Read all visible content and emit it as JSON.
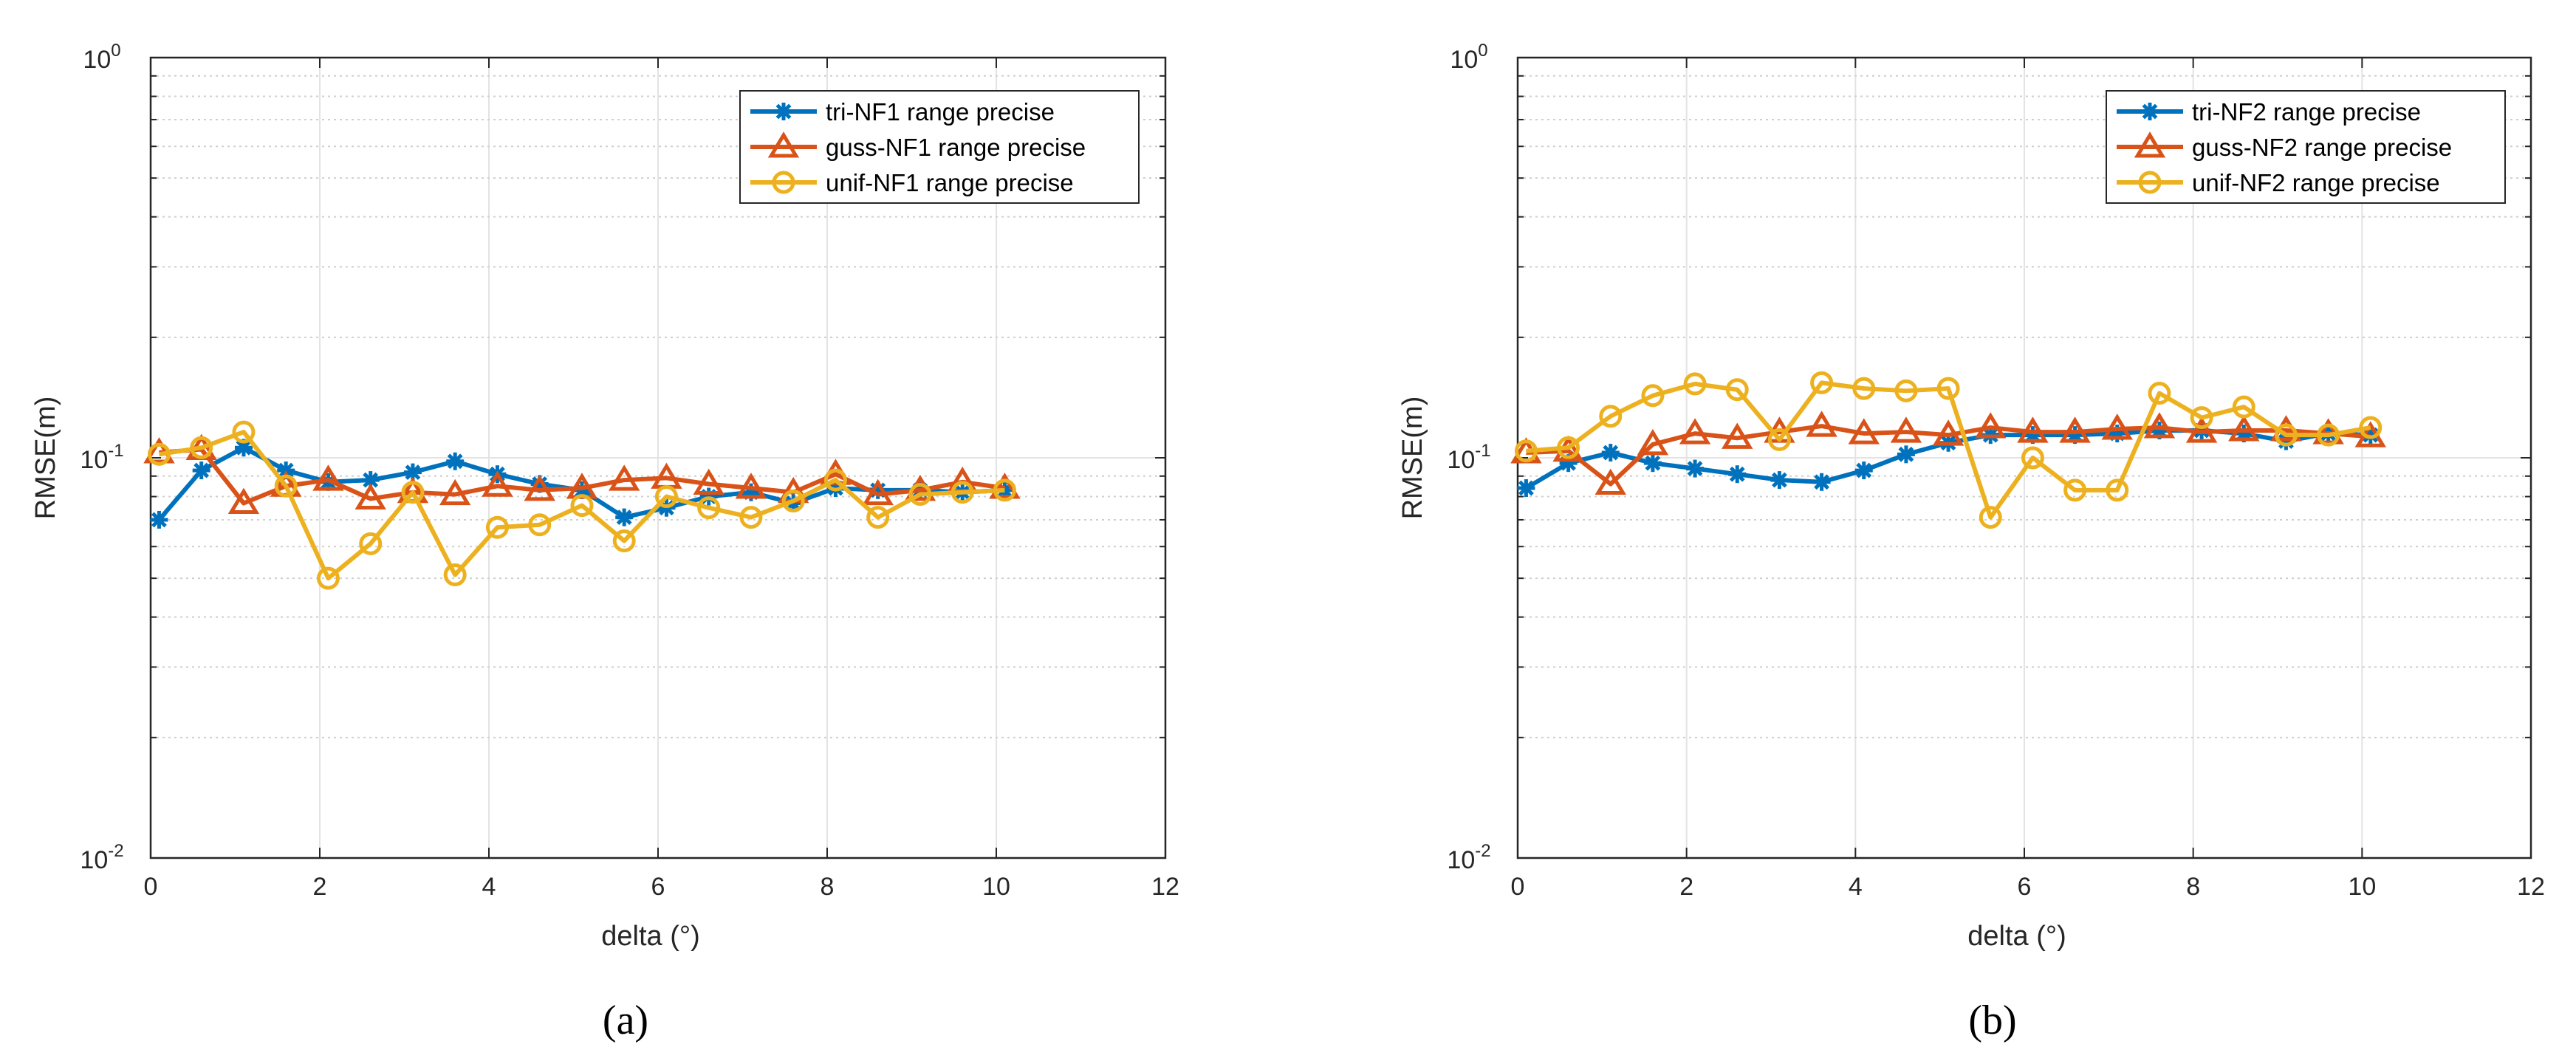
{
  "chart_data": [
    {
      "type": "line",
      "panel": "a",
      "caption": "(a)",
      "title": "",
      "xlabel": "delta (°)",
      "ylabel": "RMSE(m)",
      "xlim": [
        0,
        12
      ],
      "ylim": [
        0.01,
        1
      ],
      "yscale": "log",
      "grid": true,
      "legend_position": "top-right",
      "xticks": [
        0,
        2,
        4,
        6,
        8,
        10,
        12
      ],
      "yticks": [
        {
          "value": 0.01,
          "base": "10",
          "exp": "-2"
        },
        {
          "value": 0.1,
          "base": "10",
          "exp": "-1"
        },
        {
          "value": 1,
          "base": "10",
          "exp": "0"
        }
      ],
      "x": [
        0.1,
        0.6,
        1.1,
        1.6,
        2.1,
        2.6,
        3.1,
        3.6,
        4.1,
        4.6,
        5.1,
        5.6,
        6.1,
        6.6,
        7.1,
        7.6,
        8.1,
        8.6,
        9.1,
        9.6,
        10.1
      ],
      "series": [
        {
          "name": "tri-NF1 range precise",
          "color": "#0072BD",
          "marker": "asterisk",
          "values": [
            0.07,
            0.093,
            0.106,
            0.093,
            0.087,
            0.088,
            0.092,
            0.098,
            0.091,
            0.086,
            0.083,
            0.071,
            0.075,
            0.08,
            0.082,
            0.077,
            0.084,
            0.083,
            0.083,
            0.082,
            0.083
          ]
        },
        {
          "name": "guss-NF1 range precise",
          "color": "#D95319",
          "marker": "triangle",
          "values": [
            0.103,
            0.105,
            0.077,
            0.085,
            0.088,
            0.079,
            0.082,
            0.081,
            0.085,
            0.083,
            0.084,
            0.088,
            0.089,
            0.086,
            0.084,
            0.082,
            0.091,
            0.081,
            0.083,
            0.087,
            0.084
          ]
        },
        {
          "name": "unif-NF1 range precise",
          "color": "#EDB120",
          "marker": "circle",
          "values": [
            0.102,
            0.106,
            0.116,
            0.085,
            0.05,
            0.061,
            0.082,
            0.051,
            0.067,
            0.068,
            0.076,
            0.062,
            0.08,
            0.075,
            0.071,
            0.078,
            0.088,
            0.071,
            0.081,
            0.082,
            0.083
          ]
        }
      ]
    },
    {
      "type": "line",
      "panel": "b",
      "caption": "(b)",
      "title": "",
      "xlabel": "delta (°)",
      "ylabel": "RMSE(m)",
      "xlim": [
        0,
        12
      ],
      "ylim": [
        0.01,
        1
      ],
      "yscale": "log",
      "grid": true,
      "legend_position": "top-right",
      "xticks": [
        0,
        2,
        4,
        6,
        8,
        10,
        12
      ],
      "yticks": [
        {
          "value": 0.01,
          "base": "10",
          "exp": "-2"
        },
        {
          "value": 0.1,
          "base": "10",
          "exp": "-1"
        },
        {
          "value": 1,
          "base": "10",
          "exp": "0"
        }
      ],
      "x": [
        0.1,
        0.6,
        1.1,
        1.6,
        2.1,
        2.6,
        3.1,
        3.6,
        4.1,
        4.6,
        5.1,
        5.6,
        6.1,
        6.6,
        7.1,
        7.6,
        8.1,
        8.6,
        9.1,
        9.6,
        10.1
      ],
      "series": [
        {
          "name": "tri-NF2 range precise",
          "color": "#0072BD",
          "marker": "asterisk",
          "values": [
            0.084,
            0.097,
            0.103,
            0.097,
            0.094,
            0.091,
            0.088,
            0.087,
            0.093,
            0.102,
            0.109,
            0.114,
            0.114,
            0.114,
            0.115,
            0.117,
            0.117,
            0.115,
            0.11,
            0.115,
            0.114
          ]
        },
        {
          "name": "guss-NF2 range precise",
          "color": "#D95319",
          "marker": "triangle",
          "values": [
            0.103,
            0.104,
            0.086,
            0.108,
            0.115,
            0.112,
            0.116,
            0.12,
            0.115,
            0.116,
            0.114,
            0.119,
            0.116,
            0.116,
            0.118,
            0.119,
            0.116,
            0.117,
            0.117,
            0.115,
            0.113
          ]
        },
        {
          "name": "unif-NF2 range precise",
          "color": "#EDB120",
          "marker": "circle",
          "values": [
            0.104,
            0.106,
            0.127,
            0.143,
            0.153,
            0.148,
            0.111,
            0.154,
            0.149,
            0.147,
            0.149,
            0.071,
            0.1,
            0.083,
            0.083,
            0.145,
            0.126,
            0.134,
            0.114,
            0.114,
            0.119
          ]
        }
      ]
    }
  ]
}
